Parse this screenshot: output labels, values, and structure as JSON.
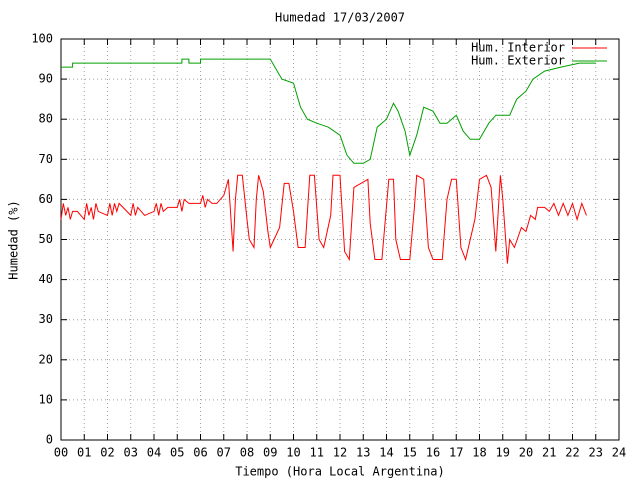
{
  "chart_data": {
    "type": "line",
    "title": "Humedad 17/03/2007",
    "x_label": "Tiempo (Hora Local Argentina)",
    "y_label": "Humedad (%)",
    "xlim": [
      0,
      24
    ],
    "xticks": [
      {
        "value": 0,
        "label": "00"
      },
      {
        "value": 1,
        "label": "01"
      },
      {
        "value": 2,
        "label": "02"
      },
      {
        "value": 3,
        "label": "03"
      },
      {
        "value": 4,
        "label": "04"
      },
      {
        "value": 5,
        "label": "05"
      },
      {
        "value": 6,
        "label": "06"
      },
      {
        "value": 7,
        "label": "07"
      },
      {
        "value": 8,
        "label": "08"
      },
      {
        "value": 9,
        "label": "09"
      },
      10,
      11,
      12,
      13,
      14,
      15,
      16,
      17,
      18,
      19,
      20,
      21,
      22,
      23,
      24
    ],
    "ylim": [
      0,
      100
    ],
    "yticks": [
      0,
      10,
      20,
      30,
      40,
      50,
      60,
      70,
      80,
      90,
      100
    ],
    "grid": true,
    "legend": "top-right",
    "series": [
      {
        "name": "Hum. Interior",
        "color": "#ff0000",
        "x": [
          0,
          0.1,
          0.2,
          0.3,
          0.4,
          0.5,
          0.7,
          1,
          1.1,
          1.2,
          1.3,
          1.4,
          1.5,
          1.6,
          2,
          2.1,
          2.2,
          2.3,
          2.4,
          2.5,
          3,
          3.1,
          3.2,
          3.3,
          3.6,
          4,
          4.1,
          4.2,
          4.3,
          4.4,
          4.6,
          5,
          5.1,
          5.2,
          5.3,
          5.5,
          6,
          6.1,
          6.2,
          6.3,
          6.5,
          6.7,
          7,
          7.2,
          7.4,
          7.5,
          7.6,
          7.8,
          8,
          8.1,
          8.3,
          8.4,
          8.5,
          8.7,
          8.9,
          9,
          9.4,
          9.6,
          9.8,
          10,
          10.2,
          10.5,
          10.7,
          10.9,
          11.1,
          11.3,
          11.6,
          11.7,
          12,
          12.2,
          12.4,
          12.6,
          13.2,
          13.3,
          13.5,
          13.8,
          14.1,
          14.3,
          14.4,
          14.6,
          15,
          15.2,
          15.3,
          15.6,
          15.8,
          16,
          16.4,
          16.6,
          16.8,
          17,
          17.2,
          17.4,
          17.8,
          18,
          18.3,
          18.5,
          18.7,
          18.9,
          19,
          19.2,
          19.3,
          19.5,
          19.8,
          20,
          20.2,
          20.4,
          20.5,
          20.8,
          21,
          21.2,
          21.4,
          21.6,
          21.8,
          22,
          22.2,
          22.4,
          22.6
        ],
        "values": [
          55,
          59,
          56,
          58,
          55,
          57,
          57,
          55,
          59,
          56,
          58,
          55,
          59,
          57,
          56,
          59,
          56,
          59,
          57,
          59,
          56,
          59,
          56,
          58,
          56,
          57,
          59,
          56,
          59,
          57,
          58,
          58,
          60,
          57,
          60,
          59,
          59,
          61,
          58,
          60,
          59,
          59,
          61,
          65,
          47,
          60,
          66,
          66,
          55,
          50,
          48,
          60,
          66,
          62,
          52,
          48,
          53,
          64,
          64,
          57,
          48,
          48,
          66,
          66,
          50,
          48,
          56,
          66,
          66,
          47,
          45,
          63,
          65,
          54,
          45,
          45,
          65,
          65,
          50,
          45,
          45,
          58,
          66,
          65,
          48,
          45,
          45,
          60,
          65,
          65,
          48,
          45,
          55,
          65,
          66,
          63,
          47,
          66,
          60,
          44,
          50,
          48,
          53,
          52,
          56,
          55,
          58,
          58,
          57,
          59,
          56,
          59,
          56,
          59,
          55,
          59,
          56
        ]
      },
      {
        "name": "Hum. Exterior",
        "color": "#00a000",
        "x": [
          0,
          0.5,
          0.5,
          5.2,
          5.2,
          5.5,
          5.5,
          6,
          6,
          9,
          9.2,
          9.5,
          10,
          10.3,
          10.6,
          11,
          11.5,
          12,
          12.3,
          12.6,
          13,
          13.3,
          13.6,
          14,
          14.3,
          14.5,
          14.8,
          15,
          15.3,
          15.6,
          16,
          16.3,
          16.6,
          17,
          17.3,
          17.6,
          18,
          18.4,
          18.7,
          19.3,
          19.6,
          20,
          20.3,
          20.8,
          21.5,
          22.3,
          23
        ],
        "values": [
          93,
          93,
          94,
          94,
          95,
          95,
          94,
          94,
          95,
          95,
          93,
          90,
          89,
          83,
          80,
          79,
          78,
          76,
          71,
          69,
          69,
          70,
          78,
          80,
          84,
          82,
          77,
          71,
          76,
          83,
          82,
          79,
          79,
          81,
          77,
          75,
          75,
          79,
          81,
          81,
          85,
          87,
          90,
          92,
          93,
          94,
          94
        ]
      }
    ]
  }
}
